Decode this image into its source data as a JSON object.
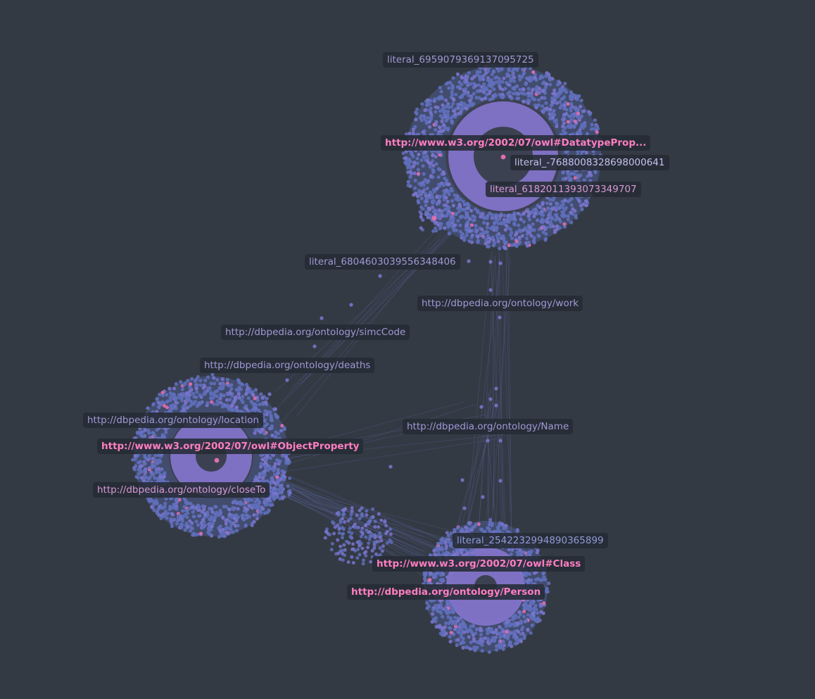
{
  "colors": {
    "background": "#343a44",
    "node": "#5f6fba",
    "node_light": "#7a74cc",
    "core": "#8a79d6",
    "highlight": "#e06fb0",
    "edge": "#6470b4",
    "label_normal": "#9e9ad6",
    "label_highlight": "#ff7ec2"
  },
  "labels": {
    "literal_1": "literal_6959079369137095725",
    "datatype_property": "http://www.w3.org/2002/07/owl#DatatypeProp...",
    "literal_2": "literal_-7688008328698000641",
    "literal_3": "literal_6182011393073349707",
    "literal_4": "literal_6804603039556348406",
    "work": "http://dbpedia.org/ontology/work",
    "simc_code": "http://dbpedia.org/ontology/simcCode",
    "deaths": "http://dbpedia.org/ontology/deaths",
    "location": "http://dbpedia.org/ontology/location",
    "object_property": "http://www.w3.org/2002/07/owl#ObjectProperty",
    "name": "http://dbpedia.org/ontology/Name",
    "close_to": "http://dbpedia.org/ontology/closeTo",
    "literal_5": "literal_2542232994890365899",
    "owl_class": "http://www.w3.org/2002/07/owl#Class",
    "person": "http://dbpedia.org/ontology/Person"
  }
}
